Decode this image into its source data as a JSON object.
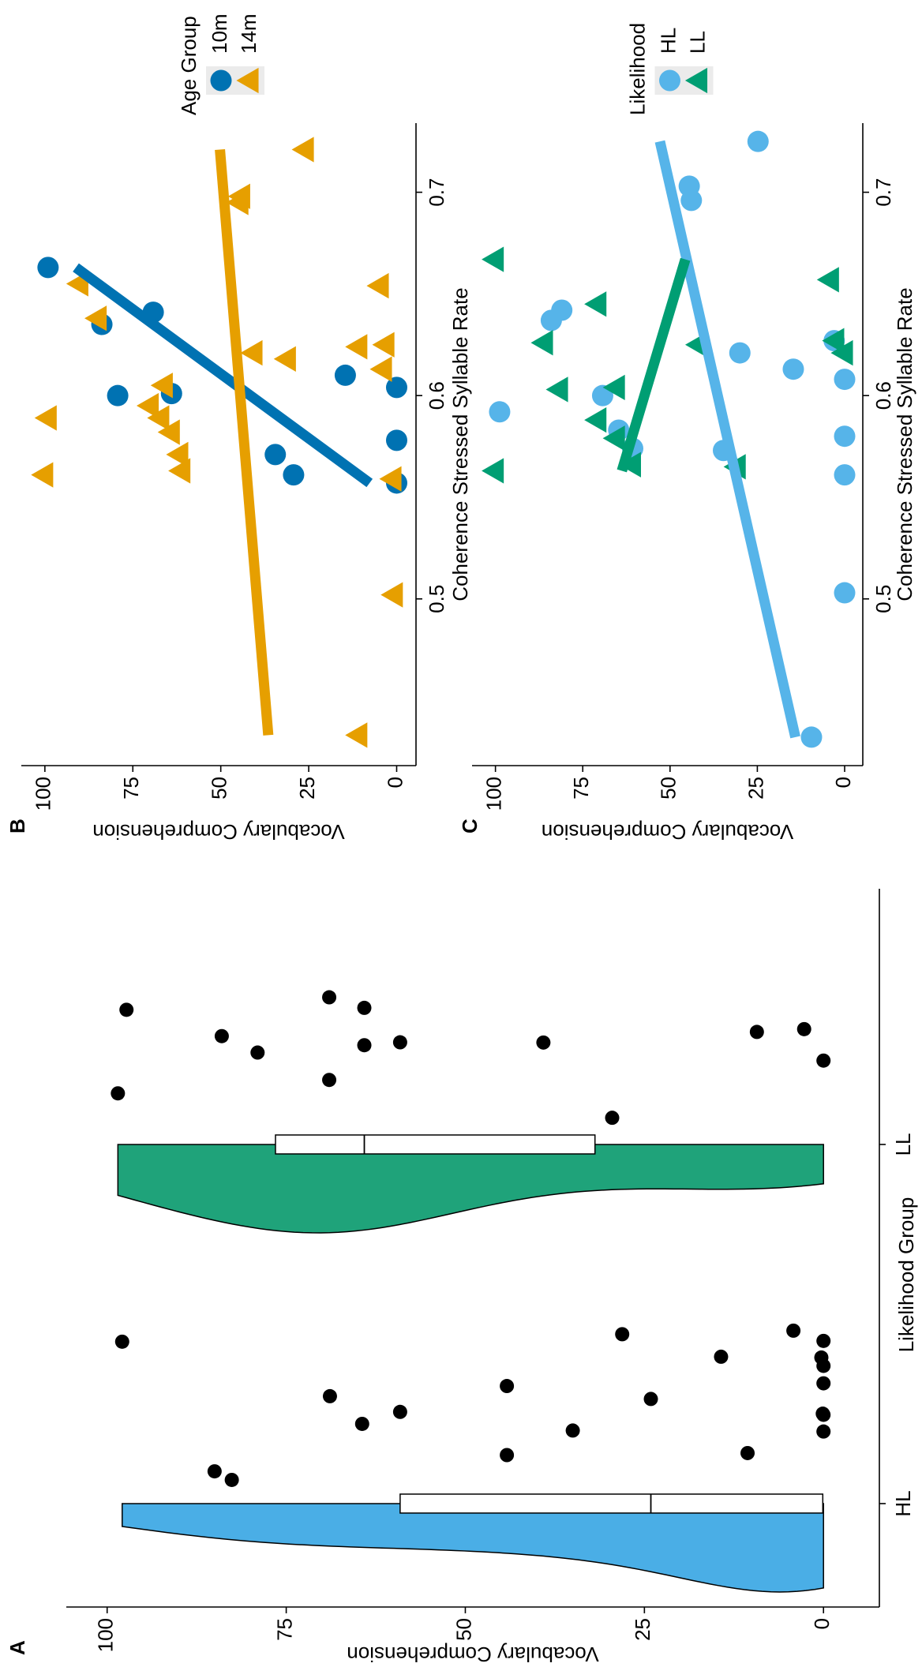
{
  "chart_data": [
    {
      "type": "raincloud",
      "label": "A",
      "xlabel": "Likelihood Group",
      "ylabel": "Vocabulary Comprehension",
      "categories": [
        "HL",
        "LL"
      ],
      "groups": [
        {
          "color": "#4aaee6",
          "values": [
            82.6,
            97.9,
            85,
            68.9,
            64.4,
            59.1,
            44.2,
            44.2,
            35,
            24.1,
            28.1,
            14.3,
            10.6,
            4.2,
            0.3,
            0.1,
            0,
            0,
            0,
            0,
            0
          ]
        },
        {
          "color": "#1fa37a",
          "values": [
            98.5,
            97.3,
            84,
            79,
            69,
            69,
            64.1,
            64.1,
            59.1,
            39.1,
            29.5,
            9.3,
            2.7,
            0
          ]
        }
      ],
      "point_color": "#000000",
      "ylim": [
        -7.8,
        105.7
      ],
      "yticks": [
        0,
        25,
        50,
        75,
        100
      ]
    },
    {
      "type": "scatter",
      "label": "B",
      "xlabel": "Coherence Stressed Syllable Rate",
      "ylabel": "Vocabulary Comprehension",
      "legend_title": "Age Group",
      "legend_position": "right",
      "fit": "linear",
      "series": [
        {
          "name": "10m",
          "color": "#0072B2",
          "marker": "circle",
          "x": [
            0.663,
            0.635,
            0.641,
            0.6,
            0.601,
            0.61,
            0.604,
            0.578,
            0.557,
            0.571,
            0.561
          ],
          "values": [
            99.1,
            83.8,
            69.2,
            79.3,
            64,
            14.6,
            0,
            0,
            0,
            34.5,
            29.3
          ]
        },
        {
          "name": "14m",
          "color": "#E69F00",
          "marker": "triangle",
          "x": [
            0.433,
            0.502,
            0.561,
            0.589,
            0.559,
            0.563,
            0.571,
            0.582,
            0.589,
            0.595,
            0.605,
            0.618,
            0.621,
            0.624,
            0.625,
            0.613,
            0.638,
            0.655,
            0.654,
            0.695,
            0.698,
            0.721
          ],
          "values": [
            10.7,
            0.6,
            100,
            99,
            1,
            61,
            61.6,
            64,
            67,
            70,
            66,
            31,
            40.5,
            10.7,
            3,
            3.7,
            84.8,
            90,
            4.6,
            44.5,
            44,
            25.9
          ]
        }
      ],
      "xlim": [
        0.418,
        0.734
      ],
      "xticks": [
        0.5,
        0.6,
        0.7
      ],
      "ylim": [
        -5.5,
        106.7
      ],
      "yticks": [
        0,
        25,
        50,
        75,
        100
      ]
    },
    {
      "type": "scatter",
      "label": "C",
      "xlabel": "Coherence Stressed Syllable Rate",
      "ylabel": "Vocabulary Comprehension",
      "legend_title": "Likelihood",
      "legend_position": "right",
      "fit": "linear",
      "series": [
        {
          "name": "HL",
          "color": "#56B4E9",
          "marker": "circle",
          "x": [
            0.432,
            0.503,
            0.725,
            0.703,
            0.696,
            0.592,
            0.642,
            0.637,
            0.6,
            0.583,
            0.574,
            0.573,
            0.621,
            0.613,
            0.627,
            0.608,
            0.58,
            0.561
          ],
          "values": [
            9.5,
            0,
            24.8,
            44.5,
            43.9,
            98.8,
            81,
            84,
            69.3,
            64.7,
            60.7,
            34.7,
            30,
            14.7,
            3,
            0,
            0,
            0
          ]
        },
        {
          "name": "LL",
          "color": "#009E73",
          "marker": "triangle",
          "x": [
            0.667,
            0.563,
            0.645,
            0.626,
            0.603,
            0.604,
            0.588,
            0.579,
            0.566,
            0.625,
            0.565,
            0.627,
            0.621,
            0.657
          ],
          "values": [
            100,
            100,
            70.6,
            85.9,
            81.6,
            65.3,
            70.6,
            65.3,
            60.7,
            41.7,
            30.7,
            2.5,
            0,
            4
          ]
        }
      ],
      "xlim": [
        0.418,
        0.734
      ],
      "xticks": [
        0.5,
        0.6,
        0.7
      ],
      "ylim": [
        -5.2,
        106.7
      ],
      "yticks": [
        0,
        25,
        50,
        75,
        100
      ]
    }
  ]
}
